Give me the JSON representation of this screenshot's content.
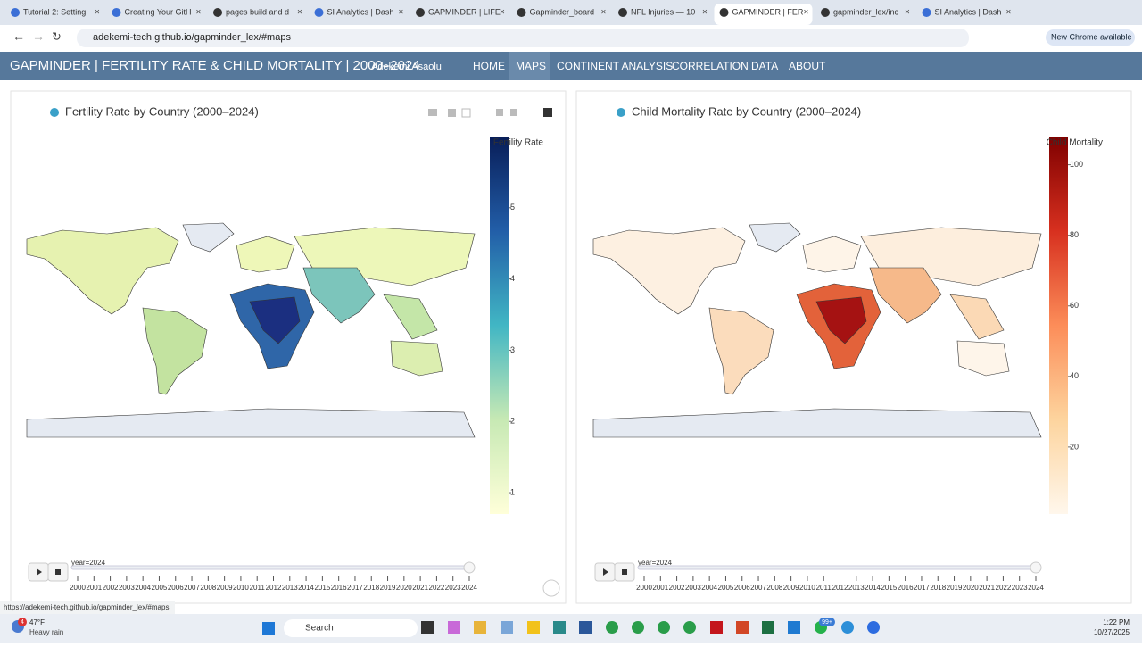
{
  "browser": {
    "tabs": [
      "Tutorial 2: Setting",
      "Creating Your GitH",
      "pages build and d",
      "SI Analytics | Dash",
      "GAPMINDER | LIFE",
      "Gapminder_board",
      "NFL Injuries — 10",
      "GAPMINDER | FER",
      "gapminder_lex/inc",
      "SI Analytics | Dash"
    ],
    "url": "adekemi-tech.github.io/gapminder_lex/#maps",
    "new_chrome": "New Chrome available"
  },
  "navbar": {
    "title": "GAPMINDER | FERTILITY RATE & CHILD MORTALITY | 2000–2024",
    "author": "Adekemi Asaolu",
    "links": [
      "HOME",
      "MAPS",
      "CONTINENT ANALYSIS",
      "CORRELATION",
      "DATA",
      "ABOUT"
    ]
  },
  "maps": [
    {
      "type": "choropleth",
      "title": "Fertility Rate by Country (2000–2024)",
      "colorbar_title": "Fertility Rate",
      "clim": [
        0.7,
        6
      ],
      "cticks": [
        1,
        2,
        3,
        4,
        5
      ],
      "colors": [
        "#ffffd9",
        "#c7e9b4",
        "#41b6c4",
        "#225ea8",
        "#081d58"
      ],
      "slider_label": "year=2024"
    },
    {
      "type": "choropleth",
      "title": "Child Mortality Rate by Country (2000–2024)",
      "colorbar_title": "Child Mortality",
      "clim": [
        1,
        108
      ],
      "cticks": [
        20,
        40,
        60,
        80,
        100
      ],
      "colors": [
        "#fff7ec",
        "#fdd49e",
        "#fc8d59",
        "#d7301f",
        "#7f0000"
      ],
      "slider_label": "year=2024"
    }
  ],
  "slider_years": [
    2000,
    2001,
    2002,
    2003,
    2004,
    2005,
    2006,
    2007,
    2008,
    2009,
    2010,
    2011,
    2012,
    2013,
    2014,
    2015,
    2016,
    2017,
    2018,
    2019,
    2020,
    2021,
    2022,
    2023,
    2024
  ],
  "status_url": "https://adekemi-tech.github.io/gapminder_lex/#maps",
  "taskbar": {
    "weather_badge": "4",
    "temperature": "47°F",
    "weather": "Heavy rain",
    "search": "Search",
    "badge": "99+",
    "time": "1:22 PM",
    "date": "10/27/2025"
  }
}
